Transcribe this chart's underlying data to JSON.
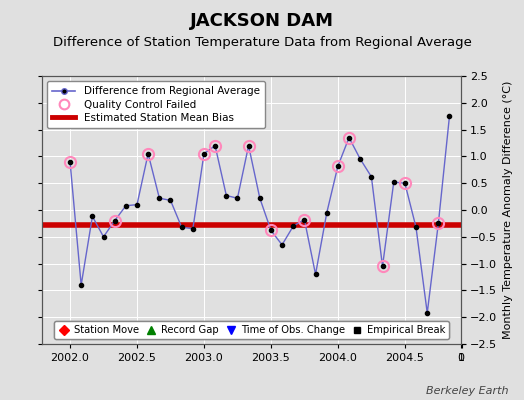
{
  "title": "JACKSON DAM",
  "subtitle": "Difference of Station Temperature Data from Regional Average",
  "ylabel": "Monthly Temperature Anomaly Difference (°C)",
  "watermark": "Berkeley Earth",
  "xlim": [
    2001.79,
    2004.92
  ],
  "ylim": [
    -2.5,
    2.5
  ],
  "yticks": [
    -2.5,
    -2,
    -1.5,
    -1,
    -0.5,
    0,
    0.5,
    1,
    1.5,
    2,
    2.5
  ],
  "xticks": [
    2002,
    2002.5,
    2003,
    2003.5,
    2004,
    2004.5
  ],
  "bias_value": -0.28,
  "line_color": "#6666cc",
  "marker_color": "#000000",
  "bias_color": "#cc0000",
  "qc_color": "#ff88bb",
  "background_color": "#e0e0e0",
  "x_data": [
    2002.0,
    2002.083,
    2002.167,
    2002.25,
    2002.333,
    2002.417,
    2002.5,
    2002.583,
    2002.667,
    2002.75,
    2002.833,
    2002.917,
    2003.0,
    2003.083,
    2003.167,
    2003.25,
    2003.333,
    2003.417,
    2003.5,
    2003.583,
    2003.667,
    2003.75,
    2003.833,
    2003.917,
    2004.0,
    2004.083,
    2004.167,
    2004.25,
    2004.333,
    2004.417,
    2004.5,
    2004.583,
    2004.667,
    2004.75,
    2004.833
  ],
  "y_data": [
    0.9,
    -1.4,
    -0.12,
    -0.5,
    -0.2,
    0.08,
    0.1,
    1.05,
    0.22,
    0.18,
    -0.32,
    -0.35,
    1.05,
    1.2,
    0.27,
    0.22,
    1.2,
    0.22,
    -0.38,
    -0.65,
    -0.3,
    -0.18,
    -1.2,
    -0.05,
    0.82,
    1.35,
    0.95,
    0.62,
    -1.05,
    0.52,
    0.5,
    -0.32,
    -1.92,
    -0.25,
    1.75
  ],
  "qc_failed_indices": [
    0,
    4,
    7,
    12,
    13,
    16,
    18,
    21,
    24,
    25,
    28,
    30,
    33
  ],
  "title_fontsize": 13,
  "subtitle_fontsize": 9.5,
  "tick_fontsize": 8,
  "label_fontsize": 8
}
